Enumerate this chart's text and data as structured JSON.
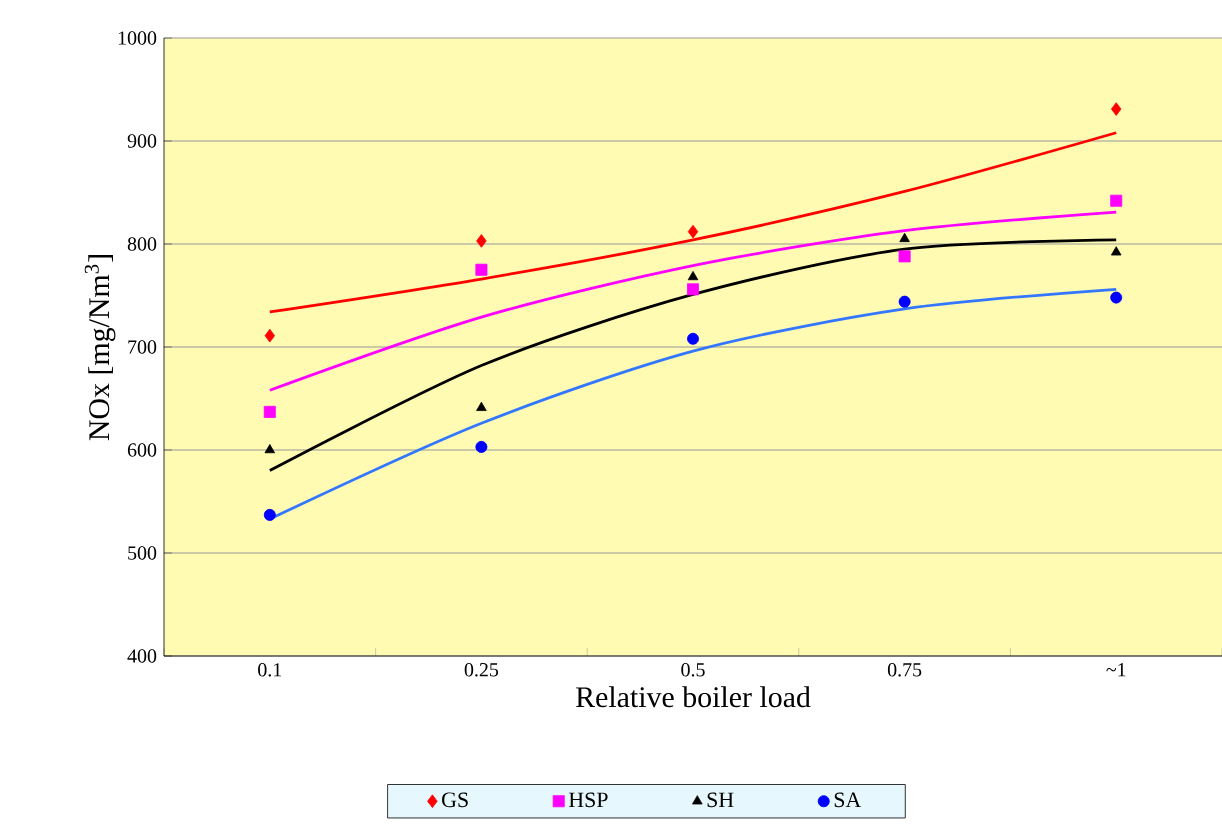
{
  "chart_data": {
    "type": "scatter",
    "xlabel": "Relative boiler load",
    "ylabel": "NOx [mg/Nm$^{3}$]",
    "categories": [
      "0.1",
      "0.25",
      "0.5",
      "0.75",
      "~1"
    ],
    "ylim": [
      400,
      1000
    ],
    "yticks": [
      400,
      500,
      600,
      700,
      800,
      900,
      1000
    ],
    "grid": "y",
    "legend": "bottom",
    "series": [
      {
        "name": "GS",
        "color": "#ff0000",
        "marker": "diamond",
        "values": [
          711,
          803,
          812,
          null,
          931
        ]
      },
      {
        "name": "HSP",
        "color": "#ff00ff",
        "marker": "square",
        "values": [
          637,
          775,
          756,
          788,
          842
        ]
      },
      {
        "name": "SH",
        "color": "#000000",
        "marker": "triangle",
        "values": [
          600,
          641,
          768,
          805,
          792
        ]
      },
      {
        "name": "SA",
        "color": "#0000ff",
        "marker": "circle",
        "values": [
          537,
          603,
          708,
          744,
          748
        ]
      },
      {
        "type": "line",
        "color": "#ff0000",
        "marker": "none",
        "line_style": "solid",
        "values": [
          734,
          766,
          804,
          851,
          908
        ]
      },
      {
        "type": "line",
        "color": "#ff00ff",
        "marker": "none",
        "line_style": "solid",
        "values": [
          658,
          729,
          779,
          813,
          831
        ]
      },
      {
        "type": "line",
        "color": "#000000",
        "marker": "none",
        "line_style": "solid",
        "values": [
          580,
          682,
          751,
          795,
          804
        ]
      },
      {
        "type": "line",
        "color": "#3377ff",
        "marker": "none",
        "line_style": "solid",
        "values": [
          533,
          626,
          696,
          737,
          756
        ]
      }
    ]
  }
}
